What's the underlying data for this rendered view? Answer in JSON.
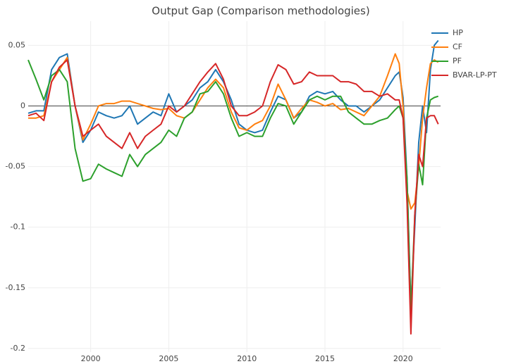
{
  "chart_data": {
    "type": "line",
    "title": "Output Gap (Comparison methodologies)",
    "x": [
      1996,
      1996.5,
      1997,
      1997.5,
      1998,
      1998.5,
      1999,
      1999.5,
      2000,
      2000.5,
      2001,
      2001.5,
      2002,
      2002.5,
      2003,
      2003.5,
      2004,
      2004.5,
      2005,
      2005.5,
      2006,
      2006.5,
      2007,
      2007.5,
      2008,
      2008.5,
      2009,
      2009.5,
      2010,
      2010.5,
      2011,
      2011.5,
      2012,
      2012.5,
      2013,
      2013.5,
      2014,
      2014.5,
      2015,
      2015.5,
      2016,
      2016.5,
      2017,
      2017.5,
      2018,
      2018.5,
      2019,
      2019.5,
      2019.75,
      2020,
      2020.25,
      2020.5,
      2020.75,
      2021,
      2021.25,
      2021.5,
      2021.75,
      2022,
      2022.25
    ],
    "series": [
      {
        "name": "HP",
        "color": "#1f77b4",
        "values": [
          -0.006,
          -0.004,
          -0.004,
          0.03,
          0.04,
          0.043,
          0.0,
          -0.03,
          -0.02,
          -0.005,
          -0.008,
          -0.01,
          -0.008,
          0.0,
          -0.015,
          -0.01,
          -0.005,
          -0.008,
          0.01,
          -0.005,
          0.0,
          0.005,
          0.015,
          0.02,
          0.03,
          0.02,
          0.005,
          -0.015,
          -0.02,
          -0.022,
          -0.02,
          -0.005,
          0.008,
          0.005,
          -0.01,
          -0.005,
          0.008,
          0.012,
          0.01,
          0.012,
          0.005,
          0.0,
          0.0,
          -0.005,
          0.0,
          0.005,
          0.015,
          0.025,
          0.028,
          0.007,
          -0.06,
          -0.165,
          -0.1,
          -0.03,
          0.0,
          -0.022,
          0.03,
          0.05,
          0.054
        ]
      },
      {
        "name": "CF",
        "color": "#ff7f0e",
        "values": [
          -0.01,
          -0.01,
          -0.008,
          0.02,
          0.03,
          0.04,
          0.0,
          -0.028,
          -0.015,
          0.0,
          0.002,
          0.002,
          0.004,
          0.004,
          0.002,
          0.0,
          -0.002,
          -0.003,
          -0.002,
          -0.008,
          -0.01,
          -0.005,
          0.005,
          0.015,
          0.022,
          0.015,
          -0.005,
          -0.018,
          -0.02,
          -0.015,
          -0.012,
          0.0,
          0.018,
          0.005,
          -0.01,
          -0.002,
          0.005,
          0.003,
          0.0,
          0.002,
          -0.003,
          -0.002,
          -0.005,
          -0.008,
          0.0,
          0.008,
          0.025,
          0.043,
          0.035,
          0.0,
          -0.07,
          -0.085,
          -0.08,
          -0.05,
          -0.01,
          0.015,
          0.035,
          0.038,
          0.036
        ]
      },
      {
        "name": "PF",
        "color": "#2ca02c",
        "values": [
          0.038,
          0.022,
          0.005,
          0.025,
          0.03,
          0.02,
          -0.035,
          -0.062,
          -0.06,
          -0.048,
          -0.052,
          -0.055,
          -0.058,
          -0.04,
          -0.05,
          -0.04,
          -0.035,
          -0.03,
          -0.02,
          -0.025,
          -0.01,
          -0.005,
          0.01,
          0.012,
          0.02,
          0.01,
          -0.01,
          -0.025,
          -0.022,
          -0.025,
          -0.025,
          -0.01,
          0.002,
          0.0,
          -0.015,
          -0.005,
          0.005,
          0.008,
          0.005,
          0.008,
          0.008,
          -0.005,
          -0.01,
          -0.015,
          -0.015,
          -0.012,
          -0.01,
          -0.003,
          0.0,
          -0.01,
          -0.06,
          -0.17,
          -0.09,
          -0.048,
          -0.065,
          -0.01,
          0.005,
          0.007,
          0.008
        ]
      },
      {
        "name": "BVAR-LP-PT",
        "color": "#d62728",
        "values": [
          -0.008,
          -0.006,
          -0.012,
          0.02,
          0.032,
          0.038,
          0.0,
          -0.025,
          -0.02,
          -0.015,
          -0.025,
          -0.03,
          -0.035,
          -0.022,
          -0.035,
          -0.025,
          -0.02,
          -0.015,
          0.0,
          -0.005,
          0.0,
          0.01,
          0.02,
          0.028,
          0.035,
          0.022,
          0.0,
          -0.008,
          -0.008,
          -0.005,
          0.0,
          0.02,
          0.034,
          0.03,
          0.018,
          0.02,
          0.028,
          0.025,
          0.025,
          0.025,
          0.02,
          0.02,
          0.018,
          0.012,
          0.012,
          0.008,
          0.01,
          0.005,
          0.005,
          -0.01,
          -0.08,
          -0.188,
          -0.09,
          -0.04,
          -0.05,
          -0.01,
          -0.008,
          -0.008,
          -0.015
        ]
      }
    ],
    "xlim": [
      1996,
      2022.4
    ],
    "xticks": [
      2000,
      2005,
      2010,
      2015,
      2020
    ],
    "ylim": [
      -0.203,
      0.07
    ],
    "yticks": [
      0.05,
      0,
      -0.05,
      -0.1,
      -0.15,
      -0.2
    ],
    "grid": true
  }
}
